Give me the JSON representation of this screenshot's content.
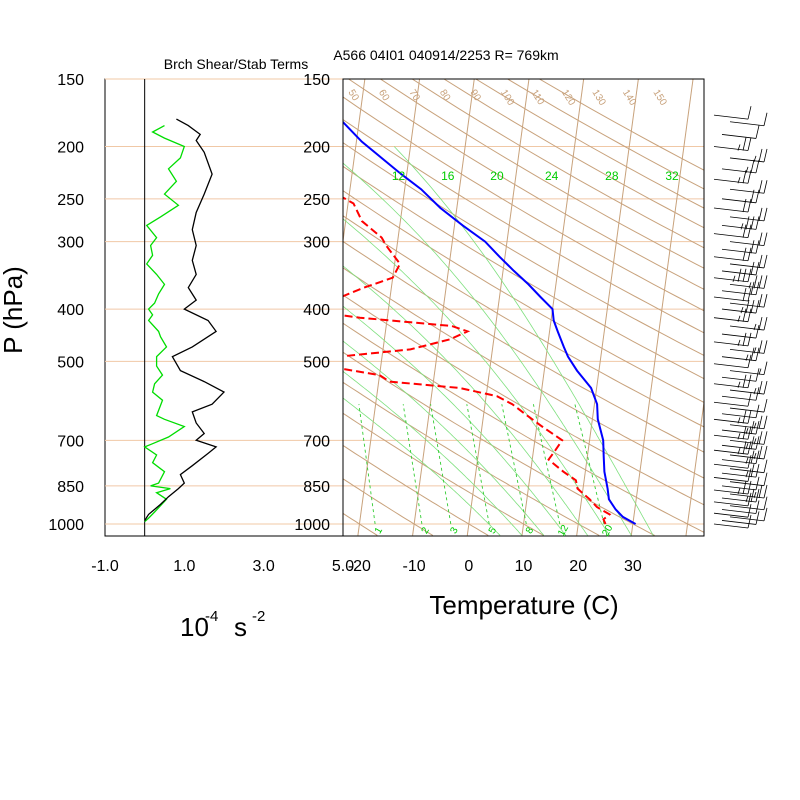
{
  "chart_data": [
    {
      "type": "line",
      "title": "Brch Shear/Stab Terms",
      "xlabel": "10",
      "xlabel_exponent": "-4",
      "xlabel_unit": "s",
      "xlabel_unit_exponent": "-2",
      "ylabel": "P (hPa)",
      "xlim": [
        -1.0,
        5.0
      ],
      "ylim": [
        1000,
        150
      ],
      "y_scale": "log",
      "grid": false,
      "x_ticks": [
        "-1.0",
        "1.0",
        "3.0",
        "5.0"
      ],
      "y_ticks": [
        {
          "label": "150",
          "p": 150
        },
        {
          "label": "200",
          "p": 200
        },
        {
          "label": "250",
          "p": 250
        },
        {
          "label": "300",
          "p": 300
        },
        {
          "label": "400",
          "p": 400
        },
        {
          "label": "500",
          "p": 500
        },
        {
          "label": "700",
          "p": 700
        },
        {
          "label": "850",
          "p": 850
        },
        {
          "label": "1000",
          "p": 1000
        }
      ],
      "series": [
        {
          "color": "#00dd00",
          "points": [
            [
              0.0,
              990
            ],
            [
              0.1,
              975
            ],
            [
              0.25,
              950
            ],
            [
              0.55,
              900
            ],
            [
              0.3,
              875
            ],
            [
              0.65,
              860
            ],
            [
              0.15,
              850
            ],
            [
              0.35,
              840
            ],
            [
              0.5,
              800
            ],
            [
              0.2,
              770
            ],
            [
              0.3,
              745
            ],
            [
              0.0,
              720
            ],
            [
              0.2,
              710
            ],
            [
              0.6,
              690
            ],
            [
              1.0,
              660
            ],
            [
              0.5,
              640
            ],
            [
              0.3,
              630
            ],
            [
              0.45,
              590
            ],
            [
              0.2,
              570
            ],
            [
              0.25,
              550
            ],
            [
              0.45,
              530
            ],
            [
              0.3,
              510
            ],
            [
              0.3,
              490
            ],
            [
              0.55,
              470
            ],
            [
              0.4,
              450
            ],
            [
              0.35,
              440
            ],
            [
              0.1,
              420
            ],
            [
              0.2,
              410
            ],
            [
              0.1,
              400
            ],
            [
              0.25,
              390
            ],
            [
              0.35,
              375
            ],
            [
              0.5,
              360
            ],
            [
              0.3,
              345
            ],
            [
              0.05,
              330
            ],
            [
              0.2,
              318
            ],
            [
              0.15,
              305
            ],
            [
              0.3,
              295
            ],
            [
              0.05,
              280
            ],
            [
              0.4,
              270
            ],
            [
              0.85,
              257
            ],
            [
              0.5,
              245
            ],
            [
              0.8,
              232
            ],
            [
              0.6,
              220
            ],
            [
              0.9,
              210
            ],
            [
              1.0,
              200
            ],
            [
              0.5,
              193
            ],
            [
              0.2,
              188
            ],
            [
              0.5,
              183
            ]
          ]
        },
        {
          "color": "#000000",
          "points": [
            [
              0.0,
              985
            ],
            [
              0.1,
              960
            ],
            [
              0.4,
              920
            ],
            [
              0.6,
              890
            ],
            [
              0.85,
              860
            ],
            [
              1.0,
              840
            ],
            [
              0.9,
              810
            ],
            [
              1.2,
              780
            ],
            [
              1.6,
              740
            ],
            [
              1.8,
              720
            ],
            [
              1.3,
              700
            ],
            [
              1.5,
              680
            ],
            [
              1.3,
              650
            ],
            [
              1.2,
              620
            ],
            [
              1.7,
              600
            ],
            [
              2.0,
              570
            ],
            [
              1.5,
              545
            ],
            [
              0.9,
              520
            ],
            [
              0.7,
              490
            ],
            [
              1.2,
              470
            ],
            [
              1.8,
              440
            ],
            [
              1.6,
              420
            ],
            [
              1.0,
              400
            ],
            [
              1.3,
              385
            ],
            [
              1.1,
              365
            ],
            [
              1.3,
              345
            ],
            [
              1.2,
              325
            ],
            [
              1.3,
              305
            ],
            [
              1.2,
              285
            ],
            [
              1.3,
              265
            ],
            [
              1.5,
              245
            ],
            [
              1.7,
              225
            ],
            [
              1.5,
              205
            ],
            [
              1.3,
              195
            ],
            [
              1.4,
              190
            ],
            [
              1.1,
              183
            ],
            [
              0.8,
              178
            ]
          ]
        }
      ]
    },
    {
      "type": "line",
      "title": "A566 04I01 040914/2253 R= 769km",
      "xlabel": "Temperature (C)",
      "xlim": [
        -23.0,
        43.0
      ],
      "ylim": [
        1000,
        150
      ],
      "y_scale": "log",
      "skew_per_decade": 73,
      "grid": true,
      "x_ticks": [
        "-20",
        "-10",
        "0",
        "10",
        "20",
        "30"
      ],
      "y_ticks": [
        "150",
        "200",
        "250",
        "300",
        "400",
        "500",
        "700",
        "850",
        "1000"
      ],
      "colors": {
        "isobars": "#f0c8a6",
        "isotherms": "#c8a27c",
        "dry_adiabats": "#c8a27c",
        "moist_adiabats": "#7fe07f",
        "mixing_ratio": "#33cc33",
        "mixing_ratio_labels": "#00cc00",
        "adiabat_labels": "#c8a27c",
        "temperature": "#0000ff",
        "dewpoint": "#ff0000",
        "wind_barbs": "#000000"
      },
      "dry_adiabat_labels": [
        "50",
        "60",
        "70",
        "80",
        "90",
        "100",
        "110",
        "120",
        "130",
        "140",
        "150"
      ],
      "upper_mixing_ratio_labels": [
        {
          "label": "12",
          "t": -21
        },
        {
          "label": "16",
          "t": -12
        },
        {
          "label": "20",
          "t": -3
        },
        {
          "label": "24",
          "t": 7
        },
        {
          "label": "28",
          "t": 18
        },
        {
          "label": "32",
          "t": 29
        }
      ],
      "lower_mixing_ratio_labels": [
        "1",
        "2",
        "3",
        "5",
        "8",
        "12",
        "20"
      ],
      "series": [
        {
          "color": "#0000ff",
          "style": "solid",
          "points": [
            [
              30.5,
              1000
            ],
            [
              28,
              970
            ],
            [
              26.5,
              940
            ],
            [
              25,
              900
            ],
            [
              24.5,
              860
            ],
            [
              23.5,
              800
            ],
            [
              23,
              750
            ],
            [
              22.5,
              700
            ],
            [
              21,
              640
            ],
            [
              20.5,
              600
            ],
            [
              19,
              560
            ],
            [
              16,
              520
            ],
            [
              14,
              490
            ],
            [
              13,
              470
            ],
            [
              11.5,
              440
            ],
            [
              10.5,
              420
            ],
            [
              10,
              400
            ],
            [
              7.5,
              380
            ],
            [
              5,
              360
            ],
            [
              2,
              340
            ],
            [
              -1,
              320
            ],
            [
              -4,
              300
            ],
            [
              -8.5,
              280
            ],
            [
              -13,
              260
            ],
            [
              -17,
              240
            ],
            [
              -21,
              225
            ],
            [
              -25,
              210
            ],
            [
              -29,
              196
            ],
            [
              -33,
              180
            ]
          ]
        },
        {
          "color": "#ff0000",
          "style": "dashed",
          "points": [
            [
              25,
              1000
            ],
            [
              24.5,
              980
            ],
            [
              25.5,
              960
            ],
            [
              23,
              930
            ],
            [
              21.5,
              900
            ],
            [
              19,
              860
            ],
            [
              18.5,
              830
            ],
            [
              16,
              800
            ],
            [
              13,
              760
            ],
            [
              14,
              730
            ],
            [
              15,
              700
            ],
            [
              11,
              660
            ],
            [
              8,
              630
            ],
            [
              5,
              600
            ],
            [
              2,
              580
            ],
            [
              -5,
              560
            ],
            [
              -18,
              545
            ],
            [
              -20,
              530
            ],
            [
              -30,
              510
            ],
            [
              -40,
              500
            ],
            [
              -28,
              490
            ],
            [
              -15,
              475
            ],
            [
              -8,
              455
            ],
            [
              -5,
              440
            ],
            [
              -8,
              430
            ],
            [
              -25,
              415
            ],
            [
              -33,
              405
            ],
            [
              -35,
              395
            ],
            [
              -29,
              380
            ],
            [
              -25,
              365
            ],
            [
              -20,
              350
            ],
            [
              -19,
              330
            ],
            [
              -22,
              305
            ],
            [
              -23,
              295
            ],
            [
              -27,
              275
            ],
            [
              -29,
              255
            ],
            [
              -34,
              240
            ],
            [
              -40,
              225
            ],
            [
              -41,
              210
            ],
            [
              -44,
              200
            ]
          ]
        }
      ],
      "wind_barbs": [
        [
          1000,
          10
        ],
        [
          985,
          10
        ],
        [
          970,
          10
        ],
        [
          955,
          10
        ],
        [
          940,
          10
        ],
        [
          925,
          10
        ],
        [
          910,
          10
        ],
        [
          895,
          15
        ],
        [
          880,
          15
        ],
        [
          865,
          15
        ],
        [
          850,
          10
        ],
        [
          835,
          10
        ],
        [
          820,
          10
        ],
        [
          805,
          15
        ],
        [
          790,
          10
        ],
        [
          775,
          10
        ],
        [
          760,
          15
        ],
        [
          745,
          15
        ],
        [
          730,
          15
        ],
        [
          715,
          15
        ],
        [
          700,
          15
        ],
        [
          685,
          15
        ],
        [
          670,
          15
        ],
        [
          655,
          15
        ],
        [
          640,
          15
        ],
        [
          625,
          10
        ],
        [
          610,
          10
        ],
        [
          595,
          10
        ],
        [
          580,
          10
        ],
        [
          565,
          15
        ],
        [
          550,
          15
        ],
        [
          535,
          10
        ],
        [
          520,
          5
        ],
        [
          505,
          10
        ],
        [
          490,
          15
        ],
        [
          475,
          15
        ],
        [
          460,
          15
        ],
        [
          445,
          10
        ],
        [
          430,
          15
        ],
        [
          415,
          15
        ],
        [
          400,
          25
        ],
        [
          390,
          20
        ],
        [
          380,
          20
        ],
        [
          370,
          20
        ],
        [
          360,
          25
        ],
        [
          350,
          25
        ],
        [
          340,
          20
        ],
        [
          330,
          20
        ],
        [
          320,
          20
        ],
        [
          310,
          20
        ],
        [
          300,
          20
        ],
        [
          290,
          20
        ],
        [
          280,
          25
        ],
        [
          270,
          20
        ],
        [
          260,
          20
        ],
        [
          250,
          20
        ],
        [
          240,
          20
        ],
        [
          230,
          15
        ],
        [
          220,
          15
        ],
        [
          210,
          15
        ],
        [
          200,
          15
        ],
        [
          190,
          10
        ],
        [
          180,
          10
        ],
        [
          175,
          10
        ]
      ]
    }
  ]
}
